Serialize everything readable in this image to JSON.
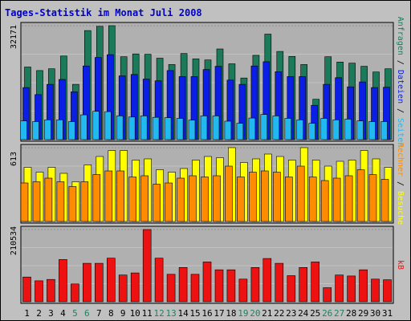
{
  "title": "Tages-Statistik im Monat Juli 2008",
  "colors": {
    "background": "#c0c0c0",
    "plot": "#b0b0b0",
    "title": "#0000cc",
    "anfragen": "#1a7a5a",
    "dateien": "#0a1ee6",
    "seiten": "#22b8f0",
    "besuche": "#ffff00",
    "rechner": "#ff8c00",
    "kb": "#ee1111",
    "weekday_label": "#000000",
    "weekend_label": "#208060"
  },
  "chart_data": [
    {
      "type": "bar",
      "name": "hits-files-pages",
      "max_label": "32171",
      "ymax": 32171,
      "right_labels": [
        {
          "text": "Anfragen",
          "color": "#1a7a5a"
        },
        {
          "text": " / ",
          "color": "#000000"
        },
        {
          "text": "Dateien",
          "color": "#0a1ee6"
        },
        {
          "text": " / ",
          "color": "#000000"
        },
        {
          "text": "Seiten",
          "color": "#22b8f0"
        }
      ],
      "categories": [
        "1",
        "2",
        "3",
        "4",
        "5",
        "6",
        "7",
        "8",
        "9",
        "10",
        "11",
        "12",
        "13",
        "14",
        "15",
        "16",
        "17",
        "18",
        "19",
        "20",
        "21",
        "22",
        "23",
        "24",
        "25",
        "26",
        "27",
        "28",
        "29",
        "30",
        "31"
      ],
      "weekend": [
        false,
        false,
        false,
        false,
        true,
        true,
        false,
        false,
        false,
        false,
        false,
        true,
        true,
        false,
        false,
        false,
        false,
        false,
        true,
        true,
        false,
        false,
        false,
        false,
        false,
        true,
        true,
        false,
        false,
        false,
        false
      ],
      "series": [
        {
          "name": "Anfragen",
          "color": "#1a7a5a",
          "values": [
            20500,
            19500,
            20000,
            23600,
            15600,
            30800,
            32000,
            32171,
            23400,
            24200,
            24100,
            23000,
            21200,
            24300,
            22800,
            22500,
            25600,
            21400,
            17400,
            23800,
            29800,
            24900,
            23500,
            21200,
            11400,
            23400,
            21900,
            21600,
            20700,
            19100,
            20000
          ]
        },
        {
          "name": "Dateien",
          "color": "#0a1ee6",
          "values": [
            14700,
            12700,
            15600,
            17000,
            13500,
            20800,
            23200,
            24000,
            18000,
            18400,
            17100,
            16600,
            19500,
            17800,
            17800,
            19800,
            20700,
            16800,
            15600,
            20800,
            22000,
            19200,
            17800,
            17800,
            9700,
            15600,
            17500,
            14900,
            16300,
            14700,
            14800
          ]
        },
        {
          "name": "Seiten",
          "color": "#22b8f0",
          "values": [
            5300,
            5100,
            5600,
            5600,
            5100,
            7000,
            8000,
            7900,
            6700,
            6400,
            6700,
            6300,
            6200,
            6000,
            5500,
            6700,
            6700,
            5200,
            4600,
            6100,
            7100,
            6700,
            6000,
            5600,
            4600,
            6000,
            5600,
            5800,
            5300,
            5100,
            5100
          ]
        }
      ]
    },
    {
      "type": "bar",
      "name": "visits-hosts",
      "max_label": "613",
      "ymax": 613,
      "right_labels": [
        {
          "text": "Rechner",
          "color": "#ff8c00"
        },
        {
          "text": " / ",
          "color": "#000000"
        },
        {
          "text": "Besuche",
          "color": "#ffff00"
        }
      ],
      "categories": [
        "1",
        "2",
        "3",
        "4",
        "5",
        "6",
        "7",
        "8",
        "9",
        "10",
        "11",
        "12",
        "13",
        "14",
        "15",
        "16",
        "17",
        "18",
        "19",
        "20",
        "21",
        "22",
        "23",
        "24",
        "25",
        "26",
        "27",
        "28",
        "29",
        "30",
        "31"
      ],
      "weekend": [
        false,
        false,
        false,
        false,
        true,
        true,
        false,
        false,
        false,
        false,
        false,
        true,
        true,
        false,
        false,
        false,
        false,
        false,
        true,
        true,
        false,
        false,
        false,
        false,
        false,
        true,
        true,
        false,
        false,
        false,
        false
      ],
      "series": [
        {
          "name": "Besuche",
          "color": "#ffff00",
          "values": [
            450,
            410,
            450,
            400,
            330,
            470,
            540,
            590,
            590,
            510,
            520,
            430,
            410,
            440,
            510,
            540,
            530,
            613,
            490,
            520,
            560,
            540,
            510,
            613,
            510,
            460,
            500,
            510,
            590,
            520,
            450
          ]
        },
        {
          "name": "Rechner",
          "color": "#ff8c00",
          "values": [
            320,
            330,
            360,
            330,
            290,
            330,
            390,
            420,
            420,
            370,
            380,
            310,
            320,
            360,
            380,
            370,
            380,
            460,
            370,
            410,
            420,
            410,
            370,
            460,
            370,
            340,
            360,
            380,
            430,
            390,
            350
          ]
        }
      ]
    },
    {
      "type": "bar",
      "name": "traffic-kb",
      "max_label": "210534",
      "ymax": 210534,
      "right_labels": [
        {
          "text": "kB",
          "color": "#ee1111"
        }
      ],
      "categories": [
        "1",
        "2",
        "3",
        "4",
        "5",
        "6",
        "7",
        "8",
        "9",
        "10",
        "11",
        "12",
        "13",
        "14",
        "15",
        "16",
        "17",
        "18",
        "19",
        "20",
        "21",
        "22",
        "23",
        "24",
        "25",
        "26",
        "27",
        "28",
        "29",
        "30",
        "31"
      ],
      "weekend": [
        false,
        false,
        false,
        false,
        true,
        true,
        false,
        false,
        false,
        false,
        false,
        true,
        true,
        false,
        false,
        false,
        false,
        false,
        true,
        true,
        false,
        false,
        false,
        false,
        false,
        true,
        true,
        false,
        false,
        false,
        false
      ],
      "series": [
        {
          "name": "kB",
          "color": "#ee1111",
          "values": [
            72000,
            61000,
            65000,
            123000,
            52000,
            112000,
            112000,
            127000,
            78000,
            84000,
            210534,
            127000,
            80000,
            100000,
            80000,
            116000,
            93000,
            93000,
            66000,
            100000,
            126000,
            112000,
            76000,
            100000,
            116000,
            41000,
            78000,
            75000,
            93000,
            66000,
            64000
          ]
        }
      ]
    }
  ]
}
